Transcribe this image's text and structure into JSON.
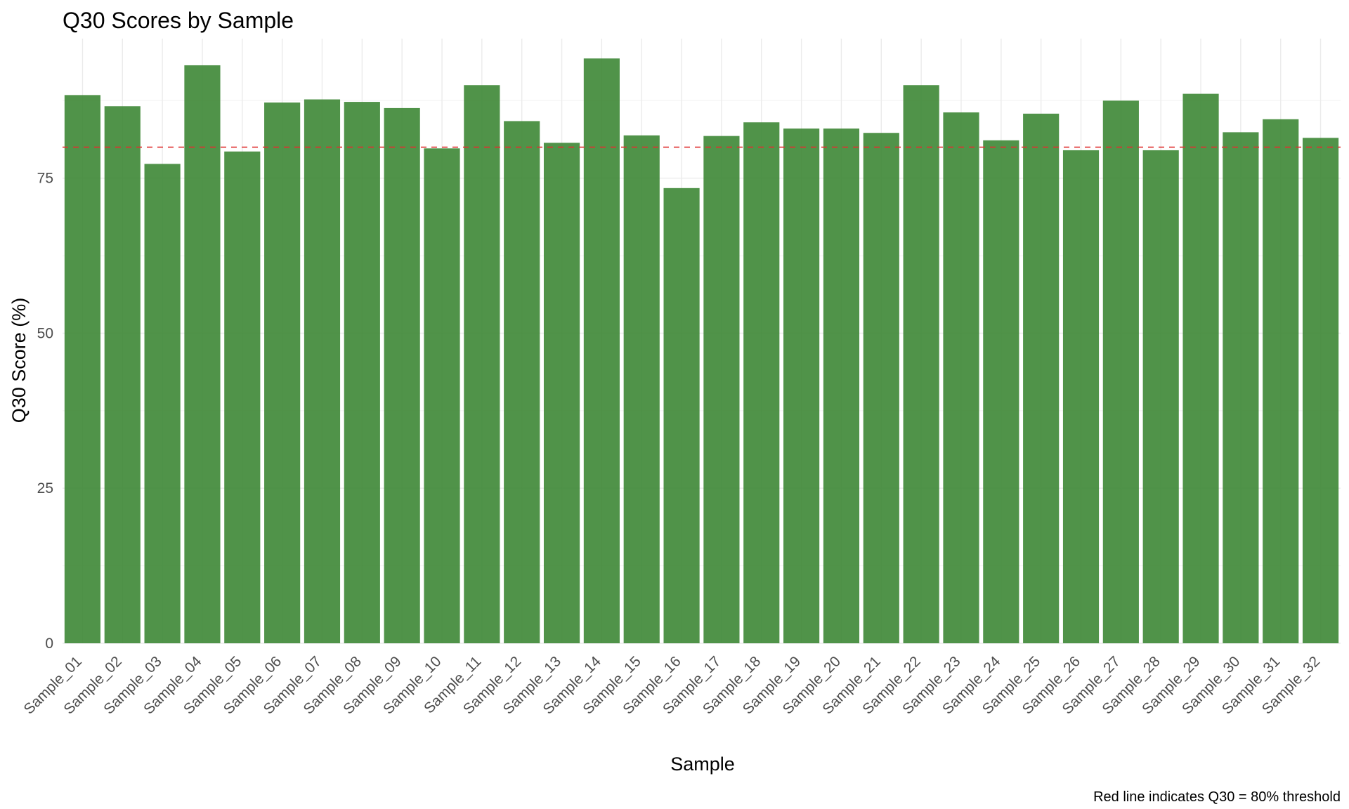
{
  "chart_data": {
    "type": "bar",
    "title": "Q30 Scores by Sample",
    "xlabel": "Sample",
    "ylabel": "Q30 Score (%)",
    "caption": "Red line indicates Q30 = 80% threshold",
    "categories": [
      "Sample_01",
      "Sample_02",
      "Sample_03",
      "Sample_04",
      "Sample_05",
      "Sample_06",
      "Sample_07",
      "Sample_08",
      "Sample_09",
      "Sample_10",
      "Sample_11",
      "Sample_12",
      "Sample_13",
      "Sample_14",
      "Sample_15",
      "Sample_16",
      "Sample_17",
      "Sample_18",
      "Sample_19",
      "Sample_20",
      "Sample_21",
      "Sample_22",
      "Sample_23",
      "Sample_24",
      "Sample_25",
      "Sample_26",
      "Sample_27",
      "Sample_28",
      "Sample_29",
      "Sample_30",
      "Sample_31",
      "Sample_32"
    ],
    "values": [
      88.4,
      86.6,
      77.3,
      93.2,
      79.3,
      87.2,
      87.7,
      87.3,
      86.3,
      79.8,
      90.0,
      84.2,
      80.7,
      94.3,
      81.9,
      73.4,
      81.8,
      84.0,
      83.0,
      83.0,
      82.3,
      90.0,
      85.6,
      81.1,
      85.4,
      79.5,
      87.5,
      79.5,
      88.6,
      82.4,
      84.5,
      81.5
    ],
    "threshold": 80,
    "ylim": [
      0,
      97.5
    ],
    "yticks": [
      0,
      25,
      50,
      75
    ],
    "grid": true,
    "legend": "none",
    "colors": {
      "bar": "#3d8735",
      "threshold": "#e03030",
      "grid_major": "#ebebeb",
      "grid_minor": "#f4f4f4"
    }
  }
}
